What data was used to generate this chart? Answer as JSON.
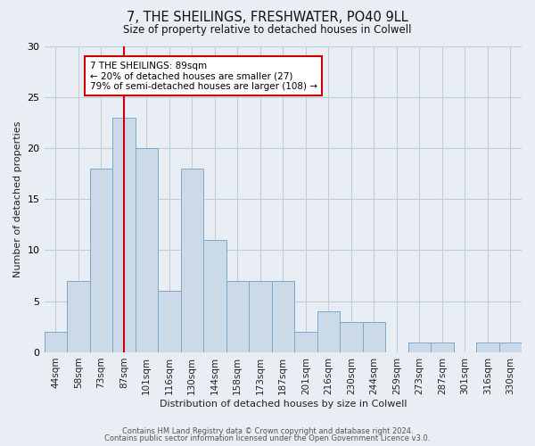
{
  "title1": "7, THE SHEILINGS, FRESHWATER, PO40 9LL",
  "title2": "Size of property relative to detached houses in Colwell",
  "xlabel": "Distribution of detached houses by size in Colwell",
  "ylabel": "Number of detached properties",
  "bins": [
    "44sqm",
    "58sqm",
    "73sqm",
    "87sqm",
    "101sqm",
    "116sqm",
    "130sqm",
    "144sqm",
    "158sqm",
    "173sqm",
    "187sqm",
    "201sqm",
    "216sqm",
    "230sqm",
    "244sqm",
    "259sqm",
    "273sqm",
    "287sqm",
    "301sqm",
    "316sqm",
    "330sqm"
  ],
  "values": [
    2,
    7,
    18,
    23,
    20,
    6,
    18,
    11,
    7,
    7,
    7,
    2,
    4,
    3,
    3,
    0,
    1,
    1,
    0,
    1,
    1
  ],
  "bar_color": "#ccd9e8",
  "bar_edge_color": "#7aaac8",
  "vline_x_index": 3,
  "vline_color": "#cc0000",
  "annotation_text": "7 THE SHEILINGS: 89sqm\n← 20% of detached houses are smaller (27)\n79% of semi-detached houses are larger (108) →",
  "annotation_box_color": "white",
  "annotation_box_edge": "#cc0000",
  "ylim": [
    0,
    30
  ],
  "yticks": [
    0,
    5,
    10,
    15,
    20,
    25,
    30
  ],
  "footer1": "Contains HM Land Registry data © Crown copyright and database right 2024.",
  "footer2": "Contains public sector information licensed under the Open Government Licence v3.0.",
  "background_color": "#e8eef4",
  "plot_bg_color": "#e8eef4",
  "grid_color": "#c0ccd8"
}
